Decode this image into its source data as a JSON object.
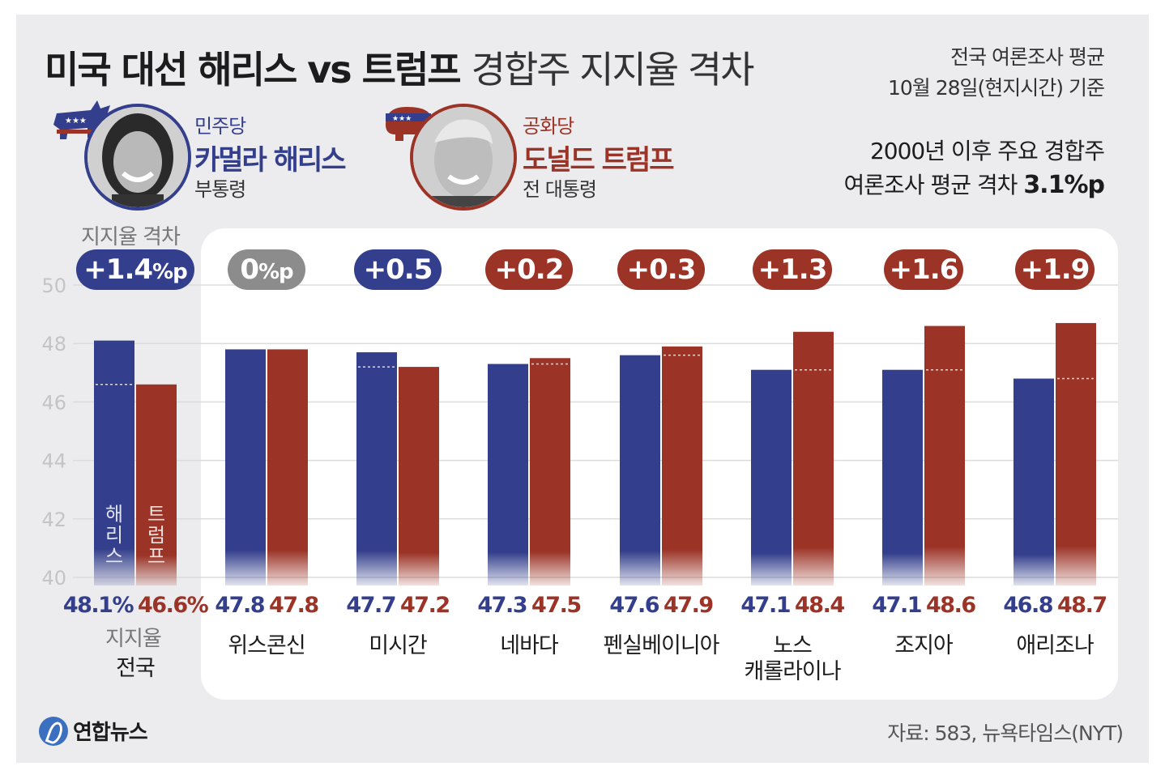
{
  "header": {
    "title_bold": "미국 대선 해리스 vs 트럼프",
    "title_light": "경합주 지지율 격차",
    "meta_line1": "전국 여론조사 평균",
    "meta_line2": "10월 28일(현지시간) 기준",
    "note_line1": "2000년 이후 주요 경합주",
    "note_line2": "여론조사 평균 격차",
    "note_value": "3.1%p"
  },
  "candidates": {
    "harris": {
      "party": "민주당",
      "name": "카멀라 해리스",
      "role": "부통령",
      "color": "#333f8c"
    },
    "trump": {
      "party": "공화당",
      "name": "도널드 트럼프",
      "role": "전 대통령",
      "color": "#9b3326"
    }
  },
  "labels": {
    "gap_caption": "지지율 격차",
    "support_caption": "지지율",
    "harris_bar_label": "해리스",
    "trump_bar_label": "트럼프"
  },
  "footer": {
    "logo": "연합뉴스",
    "source": "자료: 583, 뉴욕타임스(NYT)"
  },
  "colors": {
    "harris": "#333f8c",
    "trump": "#9b3326",
    "neutral": "#8c8c8c",
    "grid": "#dcdcdc"
  },
  "chart_data": {
    "type": "bar",
    "categories": [
      "전국",
      "위스콘신",
      "미시간",
      "네바다",
      "펜실베이니아",
      "노스\n캐롤라이나",
      "조지아",
      "애리조나"
    ],
    "series": [
      {
        "name": "해리스",
        "values": [
          48.1,
          47.8,
          47.7,
          47.3,
          47.6,
          47.1,
          47.1,
          46.8
        ]
      },
      {
        "name": "트럼프",
        "values": [
          46.6,
          47.8,
          47.2,
          47.5,
          47.9,
          48.4,
          48.6,
          48.7
        ]
      }
    ],
    "value_labels": {
      "harris": [
        "48.1%",
        "47.8",
        "47.7",
        "47.3",
        "47.6",
        "47.1",
        "47.1",
        "46.8"
      ],
      "trump": [
        "46.6%",
        "47.8",
        "47.2",
        "47.5",
        "47.9",
        "48.4",
        "48.6",
        "48.7"
      ]
    },
    "gap_labels": [
      "+1.4",
      "0",
      "+0.5",
      "+0.2",
      "+0.3",
      "+1.3",
      "+1.6",
      "+1.9"
    ],
    "gap_suffix": [
      "%p",
      "%p",
      "",
      "",
      "",
      "",
      "",
      ""
    ],
    "gap_leader": [
      "harris",
      "tie",
      "harris",
      "trump",
      "trump",
      "trump",
      "trump",
      "trump"
    ],
    "yticks": [
      40,
      42,
      44,
      46,
      48,
      50
    ],
    "ylim": [
      40,
      50
    ],
    "grid": true
  }
}
